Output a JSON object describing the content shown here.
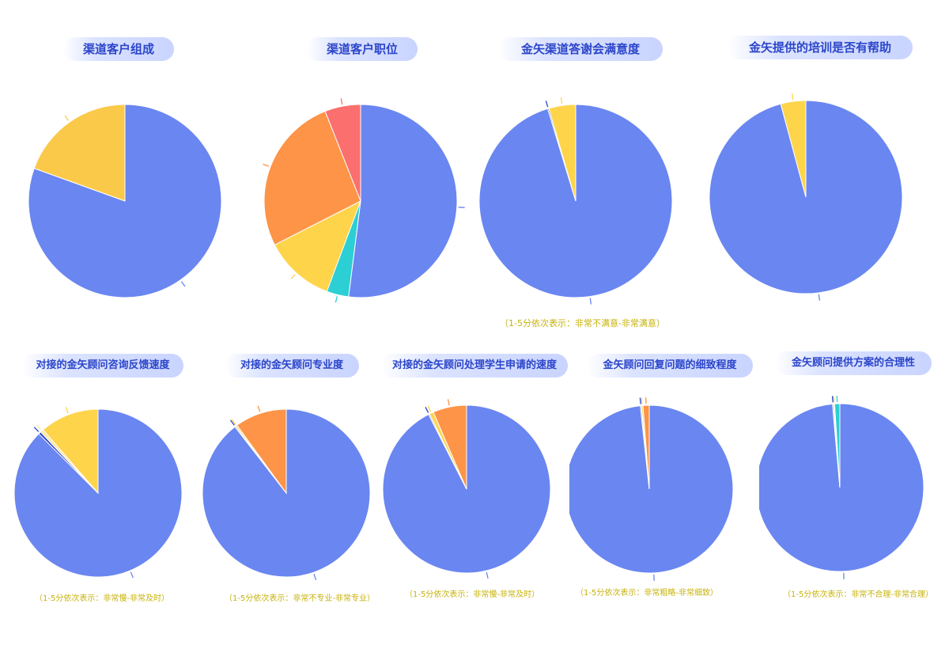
{
  "colors": {
    "blue": "#6a86f0",
    "yellow": "#fbc94a",
    "yellow2": "#fed44b",
    "orange": "#fd9447",
    "red": "#fb6f6f",
    "cyan": "#2ccfd3",
    "title_text": "#2b45c9",
    "note_text": "#c7b20a"
  },
  "chart_data": [
    {
      "type": "pie",
      "title": "渠道客户组成",
      "note": "",
      "slices": [
        {
          "value": 80.5,
          "color": "#6a86f0"
        },
        {
          "value": 19.5,
          "color": "#fbc94a"
        }
      ]
    },
    {
      "type": "pie",
      "title": "渠道客户职位",
      "note": "",
      "slices": [
        {
          "value": 52.0,
          "color": "#6a86f0"
        },
        {
          "value": 3.7,
          "color": "#2ccfd3"
        },
        {
          "value": 11.8,
          "color": "#fed44b"
        },
        {
          "value": 26.5,
          "color": "#fd9447"
        },
        {
          "value": 6.0,
          "color": "#fb6f6f"
        }
      ]
    },
    {
      "type": "pie",
      "title": "金矢渠道答谢会满意度",
      "note": "（1-5分依次表示：非常不满意-非常满意）",
      "slices": [
        {
          "value": 95.3,
          "color": "#6a86f0"
        },
        {
          "value": 0.2,
          "color": "#2b45c9"
        },
        {
          "value": 4.5,
          "color": "#fed44b"
        }
      ]
    },
    {
      "type": "pie",
      "title": "金矢提供的培训是否有帮助",
      "note": "",
      "slices": [
        {
          "value": 95.8,
          "color": "#6a86f0"
        },
        {
          "value": 4.2,
          "color": "#fed44b"
        }
      ]
    },
    {
      "type": "pie",
      "title": "对接的金矢顾问咨询反馈速度",
      "note": "（1-5分依次表示：非常慢-非常及时）",
      "slices": [
        {
          "value": 87.5,
          "color": "#6a86f0"
        },
        {
          "value": 0.5,
          "color": "#2b45c9"
        },
        {
          "value": 0.6,
          "color": "#fbe7a0"
        },
        {
          "value": 11.4,
          "color": "#fed44b"
        }
      ]
    },
    {
      "type": "pie",
      "title": "对接的金矢顾问专业度",
      "note": "（1-5分依次表示：非常不专业-非常专业）",
      "slices": [
        {
          "value": 89.5,
          "color": "#6a86f0"
        },
        {
          "value": 0.2,
          "color": "#2b45c9"
        },
        {
          "value": 0.3,
          "color": "#fed44b"
        },
        {
          "value": 10.0,
          "color": "#fd9447"
        }
      ]
    },
    {
      "type": "pie",
      "title": "对接的金矢顾问处理学生申请的速度",
      "note": "（1-5分依次表示：非常慢-非常及时）",
      "slices": [
        {
          "value": 92.5,
          "color": "#6a86f0"
        },
        {
          "value": 0.2,
          "color": "#2b45c9"
        },
        {
          "value": 0.8,
          "color": "#fed44b"
        },
        {
          "value": 6.5,
          "color": "#fd9447"
        }
      ]
    },
    {
      "type": "pie",
      "title": "金矢顾问回复问题的细致程度",
      "note": "（1-5分依次表示：非常粗略-非常细致）",
      "slices": [
        {
          "value": 98.3,
          "color": "#6a86f0"
        },
        {
          "value": 0.2,
          "color": "#2b45c9"
        },
        {
          "value": 0.3,
          "color": "#fed44b"
        },
        {
          "value": 1.2,
          "color": "#fd9447"
        }
      ]
    },
    {
      "type": "pie",
      "title": "金矢顾问提供方案的合理性",
      "note": "（1-5分依次表示：非常不合理-非常合理）",
      "slices": [
        {
          "value": 98.6,
          "color": "#6a86f0"
        },
        {
          "value": 0.2,
          "color": "#2b45c9"
        },
        {
          "value": 0.2,
          "color": "#fed44b"
        },
        {
          "value": 1.0,
          "color": "#2ccfd3"
        }
      ]
    }
  ]
}
